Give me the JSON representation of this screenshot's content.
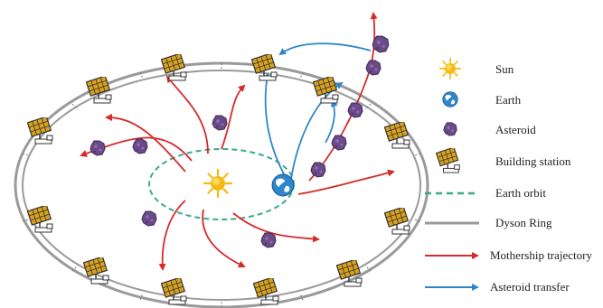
{
  "legend": {
    "sun": "Sun",
    "earth": "Earth",
    "asteroid": "Asteroid",
    "building_station": "Building station",
    "earth_orbit": "Earth orbit",
    "dyson_ring": "Dyson Ring",
    "mothership_trajectory": "Mothership trajectory",
    "asteroid_transfer": "Asteroid transfer"
  },
  "colors": {
    "ring": "#9a9a9a",
    "earth_orbit": "#3aaa8c",
    "mothership": "#d62a2a",
    "transfer": "#2f87c9",
    "asteroid": "#6b4a8a",
    "panel": "#d9a21e",
    "sun": "#f5b915"
  },
  "icons": [
    "sun-icon",
    "earth-icon",
    "asteroid-icon",
    "building-station-icon"
  ]
}
